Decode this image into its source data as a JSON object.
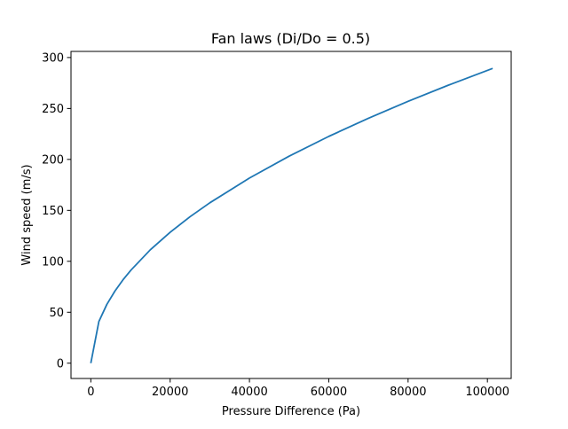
{
  "chart_data": {
    "type": "line",
    "title": "Fan laws (Di/Do = 0.5)",
    "xlabel": "Pressure Difference (Pa)",
    "ylabel": "Wind speed (m/s)",
    "xlim": [
      -5000,
      106000
    ],
    "ylim": [
      -15,
      306
    ],
    "xticks": [
      0,
      20000,
      40000,
      60000,
      80000,
      100000
    ],
    "yticks": [
      0,
      50,
      100,
      150,
      200,
      250,
      300
    ],
    "grid": false,
    "series": [
      {
        "color": "#1f77b4",
        "x": [
          0,
          2026,
          4053,
          6079,
          8106,
          10132,
          15000,
          20000,
          25000,
          30000,
          40000,
          50000,
          60000,
          70000,
          80000,
          90000,
          101325
        ],
        "y": [
          0,
          40.9,
          57.8,
          70.8,
          81.8,
          91.4,
          111.3,
          128.5,
          143.7,
          157.4,
          181.7,
          203.2,
          222.6,
          240.4,
          257.0,
          272.6,
          289.3
        ]
      }
    ]
  }
}
